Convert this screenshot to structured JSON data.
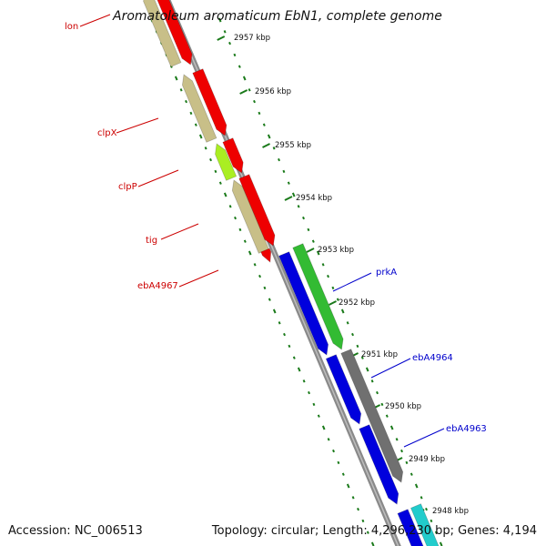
{
  "title": "Aromatoleum aromaticum EbN1, complete genome",
  "footer": {
    "accession": "Accession: NC_006513",
    "summary": "Topology: circular; Length: 4,296,230 bp; Genes: 4,194"
  },
  "scale": {
    "labels": [
      "2957 kbp",
      "2956 kbp",
      "2955 kbp",
      "2954 kbp",
      "2953 kbp",
      "2952 kbp",
      "2951 kbp",
      "2950 kbp",
      "2949 kbp",
      "2948 kbp"
    ]
  },
  "colors": {
    "background": "#ffffff",
    "backbone": "#8a8a8a",
    "tick": "#1a7a1a",
    "left_label": "#cc0000",
    "right_label": "#0000cc",
    "red_gene": "#ee0000",
    "khaki_gene": "#c8bf88",
    "lime_gene": "#aaee22",
    "blue_gene": "#0000dd",
    "green_gene": "#33bb33",
    "gray_gene": "#707070",
    "cyan_gene": "#22cccc"
  },
  "genes_left": [
    {
      "name": "lon",
      "color": "#cc0000"
    },
    {
      "name": "clpX",
      "color": "#cc0000"
    },
    {
      "name": "clpP",
      "color": "#cc0000"
    },
    {
      "name": "tig",
      "color": "#cc0000"
    },
    {
      "name": "ebA4967",
      "color": "#cc0000"
    }
  ],
  "genes_right": [
    {
      "name": "prkA",
      "color": "#0000cc"
    },
    {
      "name": "ebA4964",
      "color": "#0000cc"
    },
    {
      "name": "ebA4963",
      "color": "#0000cc"
    }
  ]
}
